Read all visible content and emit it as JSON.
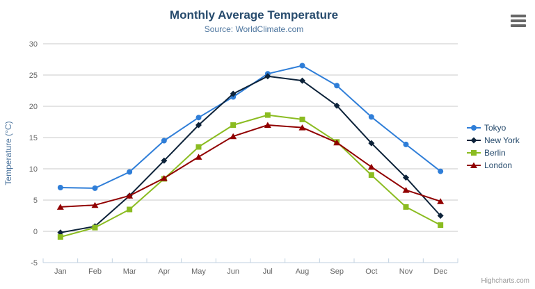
{
  "header": {
    "title": "Monthly Average Temperature",
    "subtitle": "Source: WorldClimate.com"
  },
  "icons": {
    "export_menu": "hamburger-menu-icon"
  },
  "credits": {
    "label": "Highcharts.com"
  },
  "colors": {
    "title_text": "#274b6d",
    "subtitle_text": "#4d759e",
    "axis_label_text": "#666666",
    "axis_title_text": "#4d759e",
    "gridline": "#c8c8c8",
    "axis_line": "#c0d0e0",
    "legend_text": "#274b6d",
    "credits_text": "#999999"
  },
  "chart_data": {
    "type": "line",
    "title": "Monthly Average Temperature",
    "subtitle": "Source: WorldClimate.com",
    "categories": [
      "Jan",
      "Feb",
      "Mar",
      "Apr",
      "May",
      "Jun",
      "Jul",
      "Aug",
      "Sep",
      "Oct",
      "Nov",
      "Dec"
    ],
    "xlabel": "",
    "ylabel": "Temperature (°C)",
    "ylim": [
      -5,
      30
    ],
    "ytick_interval": 5,
    "yticks": [
      -5,
      0,
      5,
      10,
      15,
      20,
      25,
      30
    ],
    "grid": true,
    "legend_position": "right",
    "series": [
      {
        "name": "Tokyo",
        "color": "#2f7ed8",
        "marker": "circle",
        "values": [
          7.0,
          6.9,
          9.5,
          14.5,
          18.2,
          21.5,
          25.2,
          26.5,
          23.3,
          18.3,
          13.9,
          9.6
        ]
      },
      {
        "name": "New York",
        "color": "#0d233a",
        "marker": "diamond",
        "values": [
          -0.2,
          0.8,
          5.7,
          11.3,
          17.0,
          22.0,
          24.8,
          24.1,
          20.1,
          14.1,
          8.6,
          2.5
        ]
      },
      {
        "name": "Berlin",
        "color": "#8bbc21",
        "marker": "square",
        "values": [
          -0.9,
          0.6,
          3.5,
          8.4,
          13.5,
          17.0,
          18.6,
          17.9,
          14.3,
          9.0,
          3.9,
          1.0
        ]
      },
      {
        "name": "London",
        "color": "#910000",
        "marker": "triangle",
        "values": [
          3.9,
          4.2,
          5.7,
          8.5,
          11.9,
          15.2,
          17.0,
          16.6,
          14.2,
          10.3,
          6.6,
          4.8
        ]
      }
    ]
  }
}
